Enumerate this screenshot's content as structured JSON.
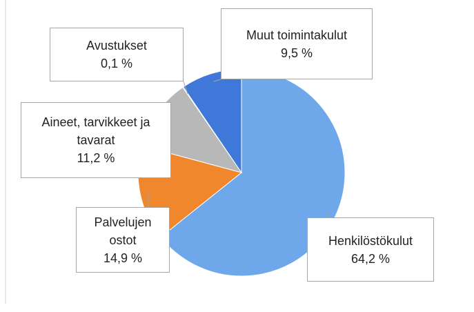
{
  "chart_data": {
    "type": "pie",
    "categories": [
      "Henkilöstökulut",
      "Palvelujen ostot",
      "Aineet, tarvikkeet ja tavarat",
      "Avustukset",
      "Muut toimintakulut"
    ],
    "values": [
      64.2,
      14.9,
      11.2,
      0.1,
      9.5
    ],
    "value_labels": [
      "64,2 %",
      "14,9 %",
      "11,2 %",
      "0,1 %",
      "9,5 %"
    ],
    "colors": [
      "#6ea8ea",
      "#f0872c",
      "#b8b8b8",
      "#9a9a9a",
      "#3f78d8"
    ]
  }
}
